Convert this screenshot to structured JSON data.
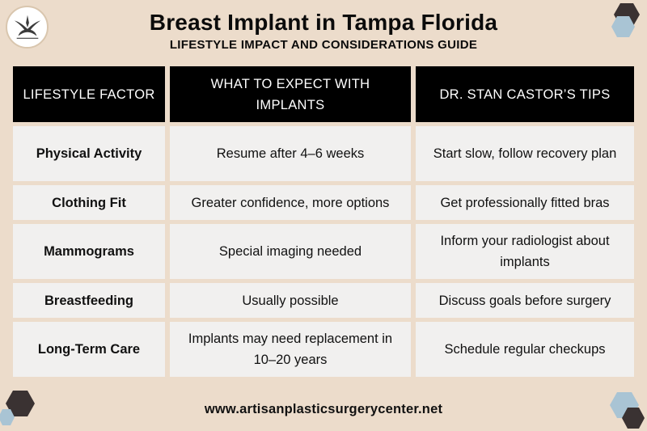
{
  "header": {
    "title": "Breast Implant in Tampa Florida",
    "subtitle": "LIFESTYLE IMPACT AND CONSIDERATIONS GUIDE"
  },
  "logo": {
    "icon": "swallow-bird-icon"
  },
  "table": {
    "headers": [
      "LIFESTYLE FACTOR",
      "WHAT TO EXPECT WITH IMPLANTS",
      "DR. STAN CASTOR’S TIPS"
    ],
    "rows": [
      [
        "Physical Activity",
        "Resume after 4–6 weeks",
        "Start slow, follow recovery plan"
      ],
      [
        "Clothing Fit",
        "Greater confidence, more options",
        "Get professionally fitted bras"
      ],
      [
        "Mammograms",
        "Special imaging needed",
        "Inform your radiologist about implants"
      ],
      [
        "Breastfeeding",
        "Usually possible",
        "Discuss goals before surgery"
      ],
      [
        "Long-Term Care",
        "Implants may need replacement in 10–20 years",
        "Schedule regular checkups"
      ]
    ]
  },
  "footer": {
    "website": "www.artisanplasticsurgerycenter.net"
  },
  "colors": {
    "background": "#ecdccb",
    "header_cell": "#000000",
    "body_cell": "#f1f0ef",
    "hex_dark": "#3a3232",
    "hex_light": "#a9c4d4"
  }
}
